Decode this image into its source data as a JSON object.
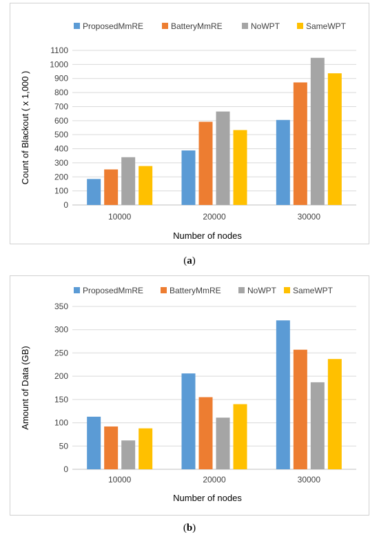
{
  "colors": [
    "#5b9bd5",
    "#ed7d31",
    "#a5a5a5",
    "#ffc000"
  ],
  "captions": [
    "a",
    "b"
  ],
  "chart_data": [
    {
      "type": "bar",
      "categories": [
        "10000",
        "20000",
        "30000"
      ],
      "series": [
        {
          "name": "ProposedMmRE",
          "values": [
            185,
            388,
            605
          ]
        },
        {
          "name": "BatteryMmRE",
          "values": [
            253,
            592,
            872
          ]
        },
        {
          "name": "NoWPT",
          "values": [
            340,
            665,
            1047
          ]
        },
        {
          "name": "SameWPT",
          "values": [
            277,
            533,
            937
          ]
        }
      ],
      "xlabel": "Number of nodes",
      "ylabel": "Count of Blackout  ( x 1,000 )",
      "ylim": [
        0,
        1100
      ],
      "yticks": [
        0,
        100,
        200,
        300,
        400,
        500,
        600,
        700,
        800,
        900,
        1000,
        1100
      ],
      "grid": true,
      "legend": "top"
    },
    {
      "type": "bar",
      "categories": [
        "10000",
        "20000",
        "30000"
      ],
      "series": [
        {
          "name": "ProposedMmRE",
          "values": [
            113,
            206,
            320
          ]
        },
        {
          "name": "BatteryMmRE",
          "values": [
            92,
            155,
            257
          ]
        },
        {
          "name": "NoWPT",
          "values": [
            62,
            111,
            187
          ]
        },
        {
          "name": "SameWPT",
          "values": [
            88,
            140,
            237
          ]
        }
      ],
      "xlabel": "Number of nodes",
      "ylabel": "Amount of Data  (GB)",
      "ylim": [
        0,
        350
      ],
      "yticks": [
        0,
        50,
        100,
        150,
        200,
        250,
        300,
        350
      ],
      "grid": true,
      "legend": "top"
    }
  ]
}
